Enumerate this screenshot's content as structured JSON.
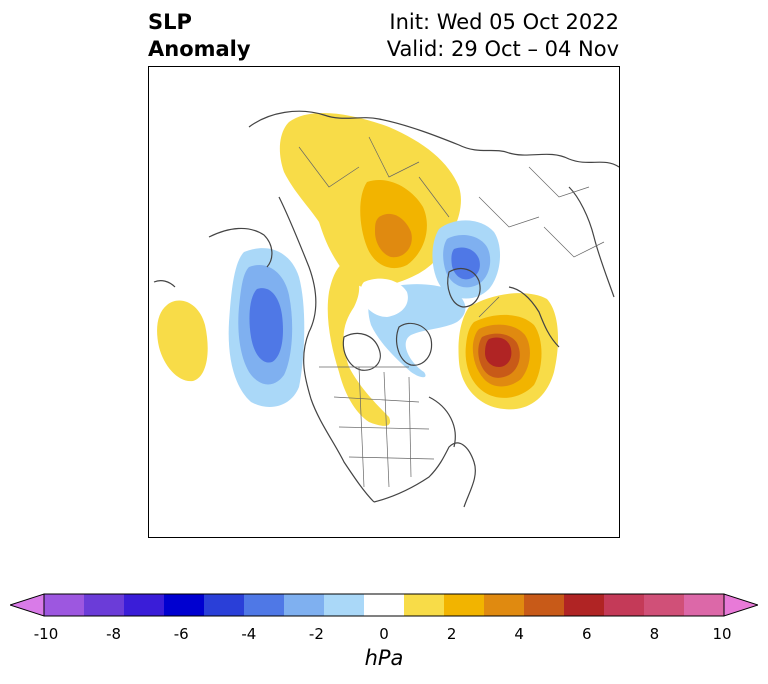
{
  "title": {
    "left_line1": "SLP",
    "left_line2": "Anomaly",
    "right_line1": "Init: Wed 05 Oct 2022",
    "right_line2": "Valid: 29 Oct – 04 Nov"
  },
  "colorbar": {
    "label": "hPa",
    "ticks": [
      "-10",
      "-8",
      "-6",
      "-4",
      "-2",
      "0",
      "2",
      "4",
      "6",
      "8",
      "10"
    ],
    "colors": [
      "#d97be8",
      "#9d57e0",
      "#6b3cd8",
      "#3a1dd8",
      "#0000d0",
      "#2a3fd8",
      "#4f78e6",
      "#7fb0f0",
      "#aad8f8",
      "#ffffff",
      "#f8dc48",
      "#f2b400",
      "#e08a10",
      "#c85a18",
      "#b02424",
      "#c43a58",
      "#d05078",
      "#dc68a8",
      "#e87ad8"
    ],
    "extend": "both",
    "range": [
      -10,
      10
    ]
  }
}
